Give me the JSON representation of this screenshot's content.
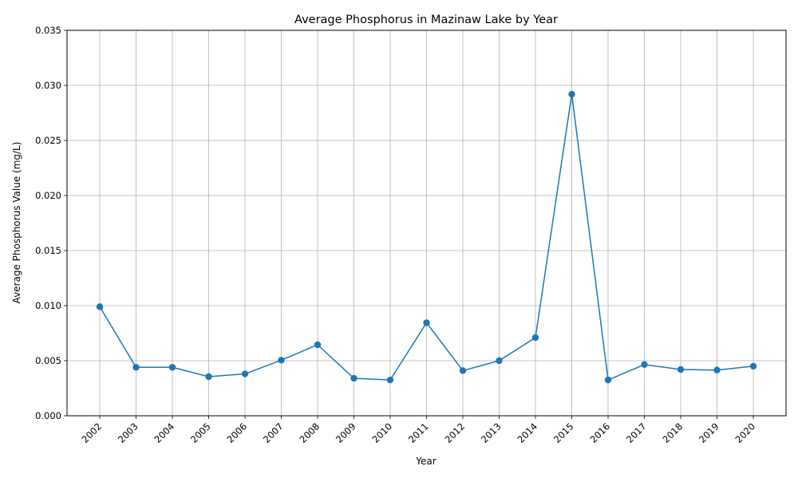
{
  "chart_data": {
    "type": "line",
    "title": "Average Phosphorus in Mazinaw Lake by Year",
    "xlabel": "Year",
    "ylabel": "Average Phosphorus Value (mg/L)",
    "categories": [
      "2002",
      "2003",
      "2004",
      "2005",
      "2006",
      "2007",
      "2008",
      "2009",
      "2010",
      "2011",
      "2012",
      "2013",
      "2014",
      "2015",
      "2016",
      "2017",
      "2018",
      "2019",
      "2020"
    ],
    "series": [
      {
        "values": [
          0.0099,
          0.0044,
          0.0044,
          0.00355,
          0.0038,
          0.00505,
          0.00645,
          0.0034,
          0.00325,
          0.00845,
          0.0041,
          0.005,
          0.0071,
          0.0292,
          0.00325,
          0.00465,
          0.0042,
          0.00415,
          0.0045
        ],
        "color": "#1f77b4"
      }
    ],
    "ylim": [
      0,
      0.035
    ],
    "yticks": [
      "0.000",
      "0.005",
      "0.010",
      "0.015",
      "0.020",
      "0.025",
      "0.030",
      "0.035"
    ],
    "grid": true,
    "legend": "none"
  }
}
